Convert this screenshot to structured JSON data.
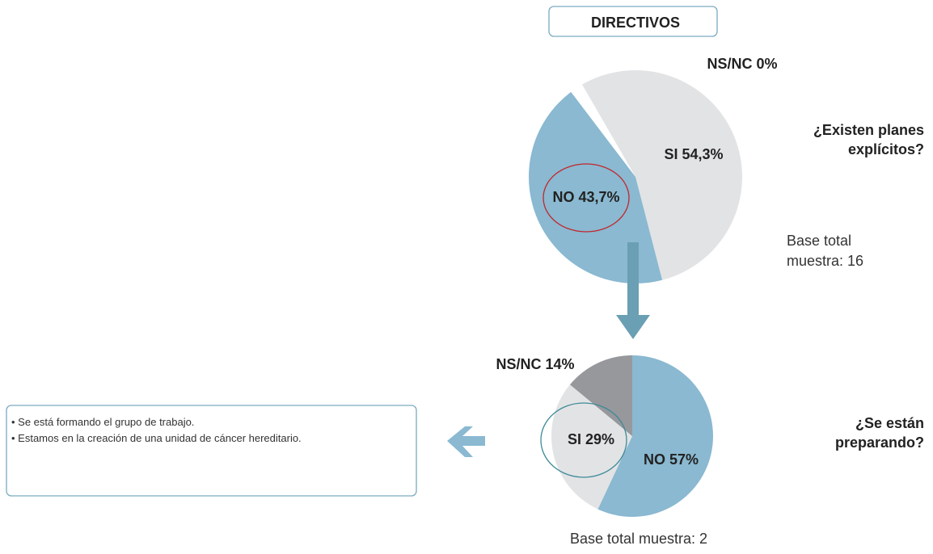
{
  "header": {
    "title": "DIRECTIVOS"
  },
  "chart_data": [
    {
      "type": "pie",
      "title": "¿Existen planes explícitos?",
      "values": [
        54.3,
        43.7,
        0
      ],
      "value_labels": [
        "SI 54,3%",
        "NO 43,7%",
        "NS/NC 0%"
      ],
      "colors": [
        "#e2e3e5",
        "#8ab9d1",
        "#97989c"
      ],
      "note": "Base total muestra: 16"
    },
    {
      "type": "pie",
      "title": "¿Se están preparando?",
      "values": [
        57,
        29,
        14
      ],
      "value_labels": [
        "NO 57%",
        "SI 29%",
        "NS/NC 14%"
      ],
      "colors": [
        "#8ab9d1",
        "#e2e3e5",
        "#97989c"
      ],
      "note": "Base total muestra: 2"
    }
  ],
  "notes": [
    "Se está formando el grupo de trabajo.",
    "Estamos en la creación de una unidad de cáncer hereditario."
  ]
}
